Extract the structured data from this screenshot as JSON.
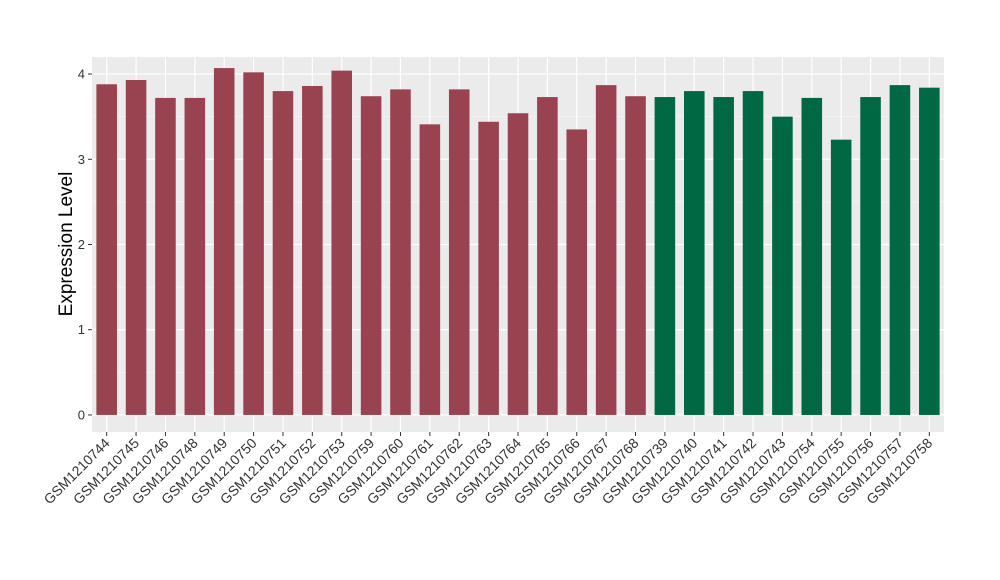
{
  "chart_data": {
    "type": "bar",
    "title": "",
    "xlabel": "",
    "ylabel": "Expression Level",
    "ylim": [
      -0.2,
      4.2
    ],
    "yticks": [
      0,
      1,
      2,
      3,
      4
    ],
    "grid": true,
    "legend": "none",
    "categories": [
      "GSM1210744",
      "GSM1210745",
      "GSM1210746",
      "GSM1210748",
      "GSM1210749",
      "GSM1210750",
      "GSM1210751",
      "GSM1210752",
      "GSM1210753",
      "GSM1210759",
      "GSM1210760",
      "GSM1210761",
      "GSM1210762",
      "GSM1210763",
      "GSM1210764",
      "GSM1210765",
      "GSM1210766",
      "GSM1210767",
      "GSM1210768",
      "GSM1210739",
      "GSM1210740",
      "GSM1210741",
      "GSM1210742",
      "GSM1210743",
      "GSM1210754",
      "GSM1210755",
      "GSM1210756",
      "GSM1210757",
      "GSM1210758"
    ],
    "values": [
      3.88,
      3.93,
      3.72,
      3.72,
      4.07,
      4.02,
      3.8,
      3.86,
      4.04,
      3.74,
      3.82,
      3.41,
      3.82,
      3.44,
      3.54,
      3.73,
      3.35,
      3.87,
      3.74,
      3.73,
      3.8,
      3.73,
      3.8,
      3.5,
      3.72,
      3.23,
      3.73,
      3.87,
      3.84
    ],
    "groups": [
      "a",
      "a",
      "a",
      "a",
      "a",
      "a",
      "a",
      "a",
      "a",
      "a",
      "a",
      "a",
      "a",
      "a",
      "a",
      "a",
      "a",
      "a",
      "a",
      "b",
      "b",
      "b",
      "b",
      "b",
      "b",
      "b",
      "b",
      "b",
      "b"
    ],
    "colors": {
      "a": "#9a4350",
      "b": "#006843",
      "panel": "#ebebeb",
      "grid_major": "#ffffff",
      "grid_minor": "#f5f5f5"
    }
  }
}
